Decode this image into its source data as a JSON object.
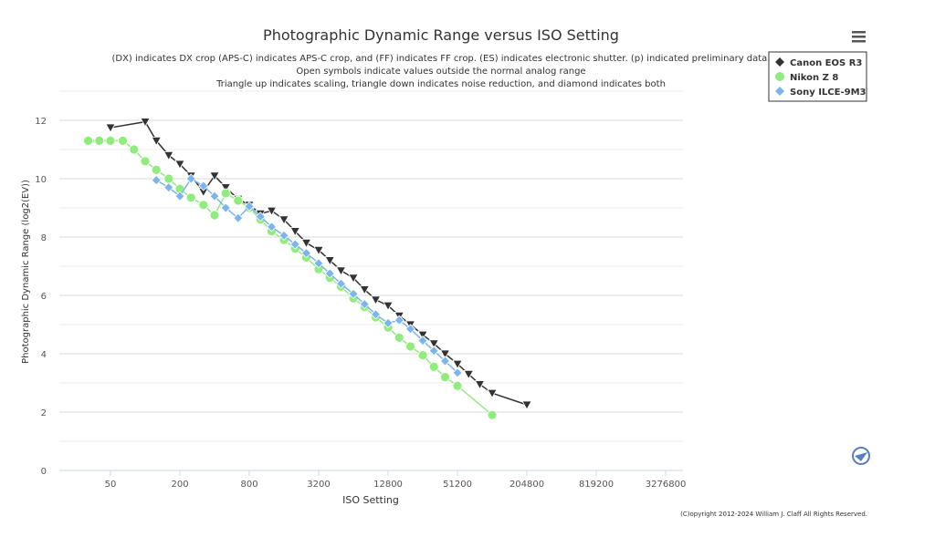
{
  "chart_data": {
    "type": "line",
    "title": "Photographic Dynamic Range versus ISO Setting",
    "subtitle": [
      "(DX) indicates DX crop (APS-C) indicates APS-C crop, and (FF) indicates FF crop. (ES) indicates electronic shutter. (p) indicated preliminary data.",
      "Open symbols indicate values outside the normal analog range",
      "Triangle up indicates scaling, triangle down indicates noise reduction, and diamond indicates both"
    ],
    "x_label": "ISO Setting",
    "y_label": "Photographic Dynamic Range (log2(EV))",
    "copyright": "(C)opyright 2012-2024 William J. Claff All Rights Reserved.",
    "xscale": "log",
    "xlim": [
      18,
      4630000
    ],
    "xticks": [
      50,
      200,
      800,
      3200,
      12800,
      51200,
      204800,
      819200,
      3276800
    ],
    "ylim": [
      0,
      13
    ],
    "yticks": [
      0,
      2,
      4,
      6,
      8,
      10,
      12
    ],
    "grid": true,
    "legend": "top-right",
    "series": [
      {
        "name": "Canon EOS R3",
        "color": "#333333",
        "marker": "triangle-down",
        "x": [
          50,
          100,
          125,
          160,
          200,
          250,
          320,
          400,
          500,
          640,
          800,
          1000,
          1250,
          1600,
          2000,
          2500,
          3200,
          4000,
          5000,
          6400,
          8000,
          10000,
          12800,
          16000,
          20000,
          25600,
          32000,
          40000,
          51200,
          64000,
          80000,
          102400,
          204800
        ],
        "values": [
          11.75,
          11.95,
          11.3,
          10.8,
          10.5,
          10.1,
          9.55,
          10.1,
          9.7,
          9.3,
          9.1,
          8.8,
          8.9,
          8.6,
          8.2,
          7.8,
          7.55,
          7.2,
          6.85,
          6.6,
          6.2,
          5.85,
          5.65,
          5.3,
          5.0,
          4.65,
          4.35,
          4.0,
          3.65,
          3.3,
          2.95,
          2.65,
          2.25
        ]
      },
      {
        "name": "Nikon Z 8",
        "color": "#90ed7d",
        "marker": "circle",
        "x": [
          32,
          40,
          50,
          64,
          80,
          100,
          125,
          160,
          200,
          250,
          320,
          400,
          500,
          640,
          800,
          1000,
          1250,
          1600,
          2000,
          2500,
          3200,
          4000,
          5000,
          6400,
          8000,
          10000,
          12800,
          16000,
          20000,
          25600,
          32000,
          40000,
          51200,
          102400
        ],
        "values": [
          11.3,
          11.3,
          11.3,
          11.3,
          11.0,
          10.6,
          10.3,
          10.0,
          9.65,
          9.35,
          9.1,
          8.75,
          9.5,
          9.25,
          9.0,
          8.6,
          8.2,
          7.9,
          7.6,
          7.3,
          6.9,
          6.6,
          6.3,
          5.9,
          5.6,
          5.25,
          4.9,
          4.55,
          4.25,
          3.95,
          3.55,
          3.2,
          2.9,
          1.9
        ]
      },
      {
        "name": "Sony ILCE-9M3",
        "color": "#7cb5ec",
        "marker": "diamond",
        "x": [
          125,
          160,
          200,
          250,
          320,
          400,
          500,
          640,
          800,
          1000,
          1250,
          1600,
          2000,
          2500,
          3200,
          4000,
          5000,
          6400,
          8000,
          10000,
          12800,
          16000,
          20000,
          25600,
          32000,
          40000,
          51200
        ],
        "values": [
          9.95,
          9.7,
          9.4,
          10.0,
          9.75,
          9.4,
          9.0,
          8.65,
          9.05,
          8.7,
          8.35,
          8.05,
          7.75,
          7.45,
          7.1,
          6.75,
          6.4,
          6.05,
          5.7,
          5.35,
          5.05,
          5.15,
          4.85,
          4.45,
          4.1,
          3.75,
          3.35
        ]
      }
    ]
  }
}
